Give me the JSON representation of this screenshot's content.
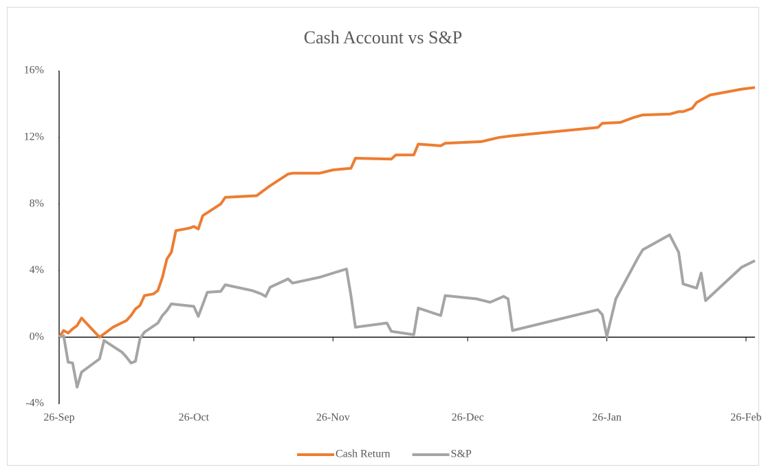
{
  "chart_data": {
    "type": "line",
    "title": "Cash Account vs S&P",
    "xlim": [
      "26-Sep",
      "28-Feb"
    ],
    "xticks": [
      "26-Sep",
      "26-Oct",
      "26-Nov",
      "26-Dec",
      "26-Jan",
      "26-Feb"
    ],
    "ylim": [
      -4,
      16
    ],
    "yticks": [
      {
        "value": -4,
        "label": "-4%"
      },
      {
        "value": 0,
        "label": "0%"
      },
      {
        "value": 4,
        "label": "4%"
      },
      {
        "value": 8,
        "label": "8%"
      },
      {
        "value": 12,
        "label": "12%"
      },
      {
        "value": 16,
        "label": "16%"
      }
    ],
    "legend": "bottom",
    "series": [
      {
        "name": "Cash Return",
        "color": "#ed7d31",
        "x": [
          "26-Sep",
          "27-Sep",
          "28-Sep",
          "29-Sep",
          "30-Sep",
          "1-Oct",
          "5-Oct",
          "8-Oct",
          "11-Oct",
          "12-Oct",
          "13-Oct",
          "14-Oct",
          "15-Oct",
          "17-Oct",
          "18-Oct",
          "19-Oct",
          "20-Oct",
          "21-Oct",
          "22-Oct",
          "25-Oct",
          "26-Oct",
          "27-Oct",
          "28-Oct",
          "1-Nov",
          "2-Nov",
          "9-Nov",
          "11-Nov",
          "12-Nov",
          "16-Nov",
          "17-Nov",
          "23-Nov",
          "26-Nov",
          "30-Nov",
          "1-Dec",
          "9-Dec",
          "10-Dec",
          "14-Dec",
          "15-Dec",
          "20-Dec",
          "21-Dec",
          "29-Dec",
          "2-Jan",
          "5-Jan",
          "24-Jan",
          "25-Jan",
          "29-Jan",
          "1-Feb",
          "3-Feb",
          "9-Feb",
          "11-Feb",
          "12-Feb",
          "14-Feb",
          "15-Feb",
          "18-Feb",
          "25-Feb",
          "28-Feb"
        ],
        "values": [
          0,
          0.4,
          0.25,
          0.5,
          0.7,
          1.15,
          0,
          0.6,
          1.0,
          1.3,
          1.7,
          1.9,
          2.5,
          2.6,
          2.8,
          3.6,
          4.7,
          5.1,
          6.4,
          6.55,
          6.65,
          6.5,
          7.3,
          8.0,
          8.4,
          8.5,
          8.9,
          9.1,
          9.8,
          9.85,
          9.85,
          10.05,
          10.15,
          10.75,
          10.7,
          10.95,
          10.95,
          11.6,
          11.5,
          11.65,
          11.75,
          12.0,
          12.1,
          12.6,
          12.85,
          12.9,
          13.2,
          13.35,
          13.4,
          13.55,
          13.55,
          13.75,
          14.1,
          14.55,
          14.9,
          15.0
        ]
      },
      {
        "name": "S&P",
        "color": "#a5a5a5",
        "x": [
          "26-Sep",
          "27-Sep",
          "28-Sep",
          "29-Sep",
          "30-Sep",
          "1-Oct",
          "5-Oct",
          "6-Oct",
          "10-Oct",
          "11-Oct",
          "12-Oct",
          "13-Oct",
          "14-Oct",
          "15-Oct",
          "18-Oct",
          "19-Oct",
          "20-Oct",
          "21-Oct",
          "26-Oct",
          "27-Oct",
          "29-Oct",
          "1-Nov",
          "2-Nov",
          "8-Nov",
          "10-Nov",
          "11-Nov",
          "12-Nov",
          "16-Nov",
          "17-Nov",
          "23-Nov",
          "29-Nov",
          "30-Nov",
          "1-Dec",
          "8-Dec",
          "9-Dec",
          "14-Dec",
          "15-Dec",
          "20-Dec",
          "21-Dec",
          "28-Dec",
          "31-Dec",
          "3-Jan",
          "4-Jan",
          "5-Jan",
          "24-Jan",
          "25-Jan",
          "26-Jan",
          "28-Jan",
          "2-Feb",
          "3-Feb",
          "9-Feb",
          "11-Feb",
          "12-Feb",
          "15-Feb",
          "16-Feb",
          "17-Feb",
          "25-Feb",
          "28-Feb"
        ],
        "values": [
          0,
          0.1,
          -1.5,
          -1.55,
          -3.0,
          -2.1,
          -1.3,
          -0.2,
          -0.9,
          -1.2,
          -1.55,
          -1.45,
          -0.1,
          0.3,
          0.85,
          1.3,
          1.6,
          2.0,
          1.85,
          1.25,
          2.7,
          2.75,
          3.15,
          2.8,
          2.6,
          2.45,
          3.0,
          3.5,
          3.25,
          3.6,
          4.1,
          2.5,
          0.6,
          0.85,
          0.35,
          0.15,
          1.75,
          1.3,
          2.5,
          2.3,
          2.1,
          2.45,
          2.3,
          0.4,
          1.65,
          1.35,
          0.05,
          2.3,
          4.8,
          5.25,
          6.15,
          5.1,
          3.2,
          2.95,
          3.85,
          2.2,
          4.2,
          4.6
        ]
      }
    ]
  }
}
